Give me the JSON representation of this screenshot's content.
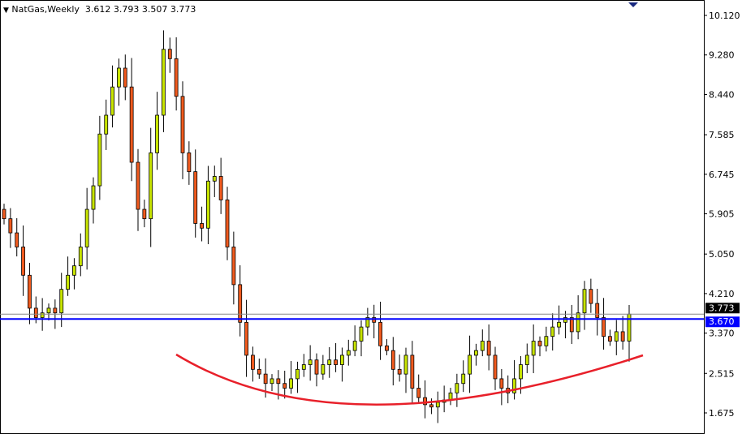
{
  "header": {
    "symbol_timeframe": "NatGas,Weekly",
    "open": "3.612",
    "high": "3.793",
    "low": "3.507",
    "close": "3.773",
    "menu_icon": "triangle-down-icon"
  },
  "chart_data": {
    "type": "candlestick",
    "title": "NatGas,Weekly",
    "ylim": [
      1.675,
      10.12
    ],
    "y_ticks": [
      "10.120",
      "9.280",
      "8.440",
      "7.585",
      "6.745",
      "5.905",
      "5.050",
      "4.210",
      "3.370",
      "2.515",
      "1.675"
    ],
    "closes": [
      5.8,
      5.5,
      5.2,
      4.6,
      3.9,
      3.7,
      3.8,
      3.9,
      3.8,
      4.3,
      4.6,
      4.8,
      5.2,
      6.0,
      6.5,
      7.6,
      8.0,
      8.6,
      9.0,
      8.6,
      7.0,
      6.0,
      5.8,
      7.2,
      8.0,
      9.4,
      9.2,
      8.4,
      7.2,
      6.8,
      5.7,
      5.6,
      6.6,
      6.7,
      6.2,
      5.2,
      4.4,
      3.6,
      2.9,
      2.6,
      2.5,
      2.3,
      2.4,
      2.3,
      2.2,
      2.4,
      2.6,
      2.7,
      2.8,
      2.5,
      2.7,
      2.8,
      2.7,
      2.9,
      3.0,
      3.2,
      3.5,
      3.7,
      3.6,
      3.1,
      3.0,
      2.6,
      2.5,
      2.9,
      2.2,
      2.0,
      1.85,
      1.8,
      1.9,
      1.95,
      2.1,
      2.3,
      2.5,
      2.9,
      3.0,
      3.2,
      2.9,
      2.4,
      2.2,
      2.1,
      2.4,
      2.7,
      2.9,
      3.2,
      3.1,
      3.3,
      3.5,
      3.6,
      3.7,
      3.4,
      3.8,
      4.3,
      4.0,
      3.7,
      3.3,
      3.2,
      3.4,
      3.2,
      3.773
    ],
    "current_price_line": {
      "value": 3.773,
      "label": "3.773",
      "color": "#000000"
    },
    "horizontal_line": {
      "value": 3.67,
      "label": "3.670",
      "color": "#0000ff"
    },
    "annotation": {
      "shape": "rounding-bottom-arc",
      "color": "#e8202a"
    },
    "colors": {
      "bull": "#c8e400",
      "bear": "#f05a1e",
      "outline": "#000000"
    }
  }
}
